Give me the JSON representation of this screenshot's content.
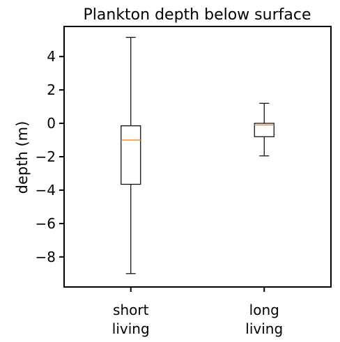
{
  "chart_data": {
    "type": "box",
    "title": "Plankton depth below surface",
    "xlabel": "",
    "ylabel": "depth (m)",
    "ylim": [
      -9.8,
      5.8
    ],
    "yticks": [
      4,
      2,
      0,
      -2,
      -4,
      -6,
      -8
    ],
    "ytick_labels": [
      "4",
      "2",
      "0",
      "−2",
      "−4",
      "−6",
      "−8"
    ],
    "categories": [
      [
        "short",
        "living"
      ],
      [
        "long",
        "living"
      ]
    ],
    "boxes": [
      {
        "whisker_low": -9.0,
        "q1": -3.65,
        "median": -1.0,
        "q3": -0.15,
        "whisker_high": 5.15
      },
      {
        "whisker_low": -1.95,
        "q1": -0.8,
        "median": -0.1,
        "q3": 0.0,
        "whisker_high": 1.2
      }
    ],
    "grid": false,
    "colors": {
      "box": "#000000",
      "median": "#ff7f0e",
      "axes": "#000000"
    }
  }
}
